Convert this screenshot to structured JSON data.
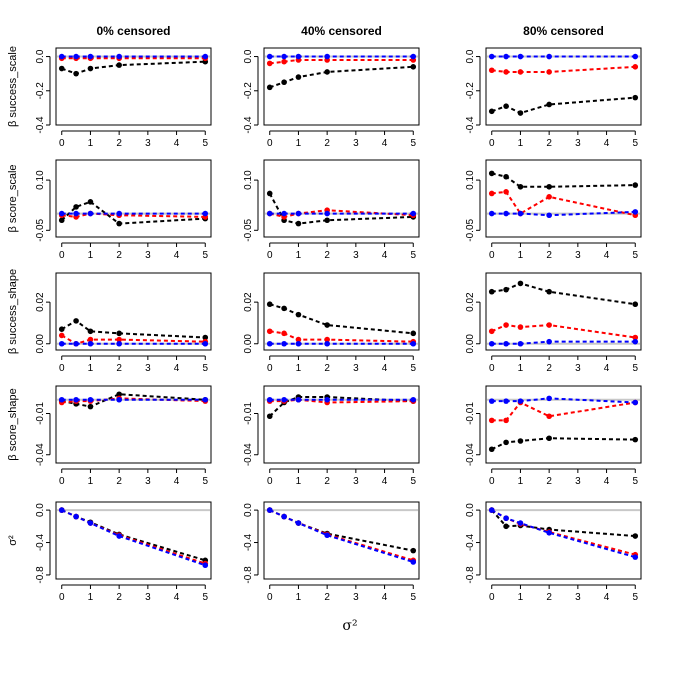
{
  "chart_data": {
    "type": "line",
    "xlabel": "σ²",
    "col_titles": [
      "0% censored",
      "40% censored",
      "80% censored"
    ],
    "x": [
      0,
      0.5,
      1,
      2,
      5
    ],
    "xticks": [
      0,
      1,
      2,
      3,
      4,
      5
    ],
    "xlim": [
      -0.2,
      5.2
    ],
    "reference_line": {
      "y": 0,
      "color": "#c8c8c8"
    },
    "series_colors": {
      "black": "#000000",
      "red": "#ff0000",
      "blue": "#0000ff"
    },
    "rows": [
      {
        "ylabel": "β success_scale",
        "ylim": [
          -0.4,
          0.05
        ],
        "yticks": [
          0.0,
          -0.2,
          -0.4
        ],
        "yticklabels": [
          "0.0",
          "-0.2",
          "-0.4"
        ],
        "panels": [
          {
            "black": [
              -0.07,
              -0.1,
              -0.07,
              -0.05,
              -0.03
            ],
            "red": [
              -0.01,
              -0.01,
              -0.01,
              -0.01,
              -0.01
            ],
            "blue": [
              0.0,
              0.0,
              0.0,
              0.0,
              0.0
            ]
          },
          {
            "black": [
              -0.18,
              -0.15,
              -0.12,
              -0.09,
              -0.06
            ],
            "red": [
              -0.04,
              -0.03,
              -0.02,
              -0.02,
              -0.02
            ],
            "blue": [
              0.0,
              0.0,
              0.0,
              0.0,
              0.0
            ]
          },
          {
            "black": [
              -0.32,
              -0.29,
              -0.33,
              -0.28,
              -0.24
            ],
            "red": [
              -0.08,
              -0.09,
              -0.09,
              -0.09,
              -0.06
            ],
            "blue": [
              0.0,
              0.0,
              0.0,
              0.0,
              0.0
            ]
          }
        ]
      },
      {
        "ylabel": "β score_scale",
        "ylim": [
          -0.07,
          0.16
        ],
        "yticks": [
          0.1,
          -0.05
        ],
        "yticklabels": [
          "0.10",
          "-0.05"
        ],
        "panels": [
          {
            "black": [
              -0.02,
              0.02,
              0.035,
              -0.03,
              -0.015
            ],
            "red": [
              -0.005,
              -0.01,
              0.0,
              -0.005,
              -0.01
            ],
            "blue": [
              0.0,
              0.0,
              0.0,
              0.0,
              0.0
            ]
          },
          {
            "black": [
              0.06,
              -0.02,
              -0.03,
              -0.02,
              -0.01
            ],
            "red": [
              0.0,
              -0.01,
              0.0,
              0.01,
              -0.005
            ],
            "blue": [
              0.0,
              0.0,
              0.0,
              0.0,
              0.0
            ]
          },
          {
            "black": [
              0.12,
              0.11,
              0.08,
              0.08,
              0.085
            ],
            "red": [
              0.06,
              0.065,
              0.0,
              0.05,
              -0.005
            ],
            "blue": [
              0.0,
              0.0,
              0.0,
              -0.005,
              0.005
            ]
          }
        ]
      },
      {
        "ylabel": "β success_shape",
        "ylim": [
          -0.003,
          0.034
        ],
        "yticks": [
          0.02,
          0.0
        ],
        "yticklabels": [
          "0.02",
          "0.00"
        ],
        "panels": [
          {
            "black": [
              0.007,
              0.011,
              0.006,
              0.005,
              0.003
            ],
            "red": [
              0.004,
              0.0,
              0.002,
              0.002,
              0.001
            ],
            "blue": [
              0.0,
              0.0,
              0.0,
              0.0,
              0.0
            ]
          },
          {
            "black": [
              0.019,
              0.017,
              0.014,
              0.009,
              0.005
            ],
            "red": [
              0.006,
              0.005,
              0.002,
              0.002,
              0.001
            ],
            "blue": [
              0.0,
              0.0,
              0.0,
              0.0,
              0.0
            ]
          },
          {
            "black": [
              0.025,
              0.026,
              0.029,
              0.025,
              0.019
            ],
            "red": [
              0.006,
              0.009,
              0.008,
              0.009,
              0.003
            ],
            "blue": [
              0.0,
              0.0,
              0.0,
              0.001,
              0.001
            ]
          }
        ]
      },
      {
        "ylabel": "β score_shape",
        "ylim": [
          -0.046,
          0.01
        ],
        "yticks": [
          -0.01,
          -0.04
        ],
        "yticklabels": [
          "-0.01",
          "-0.04"
        ],
        "panels": [
          {
            "black": [
              -0.001,
              -0.003,
              -0.005,
              0.004,
              0.0
            ],
            "red": [
              -0.002,
              -0.001,
              -0.001,
              0.001,
              -0.001
            ],
            "blue": [
              0.0,
              0.0,
              0.0,
              0.0,
              0.0
            ]
          },
          {
            "black": [
              -0.012,
              -0.002,
              0.002,
              0.002,
              -0.001
            ],
            "red": [
              -0.001,
              -0.001,
              0.0,
              -0.002,
              -0.001
            ],
            "blue": [
              0.0,
              0.0,
              0.0,
              0.0,
              0.0
            ]
          },
          {
            "black": [
              -0.036,
              -0.031,
              -0.03,
              -0.028,
              -0.029
            ],
            "red": [
              -0.015,
              -0.015,
              -0.002,
              -0.012,
              -0.002
            ],
            "blue": [
              -0.001,
              -0.001,
              -0.001,
              0.001,
              -0.002
            ]
          }
        ]
      },
      {
        "ylabel": "σ²",
        "ylim": [
          -0.85,
          0.1
        ],
        "yticks": [
          0.0,
          -0.4,
          -0.8
        ],
        "yticklabels": [
          "0.0",
          "-0.4",
          "-0.8"
        ],
        "panels": [
          {
            "black": [
              0.0,
              -0.08,
              -0.15,
              -0.3,
              -0.62
            ],
            "red": [
              0.0,
              -0.08,
              -0.16,
              -0.31,
              -0.66
            ],
            "blue": [
              0.0,
              -0.08,
              -0.16,
              -0.32,
              -0.68
            ]
          },
          {
            "black": [
              0.0,
              -0.08,
              -0.16,
              -0.29,
              -0.5
            ],
            "red": [
              0.0,
              -0.08,
              -0.16,
              -0.3,
              -0.62
            ],
            "blue": [
              0.0,
              -0.08,
              -0.16,
              -0.31,
              -0.64
            ]
          },
          {
            "black": [
              0.0,
              -0.2,
              -0.19,
              -0.24,
              -0.32
            ],
            "red": [
              0.0,
              -0.1,
              -0.17,
              -0.27,
              -0.55
            ],
            "blue": [
              0.0,
              -0.1,
              -0.16,
              -0.28,
              -0.58
            ]
          }
        ]
      }
    ]
  }
}
